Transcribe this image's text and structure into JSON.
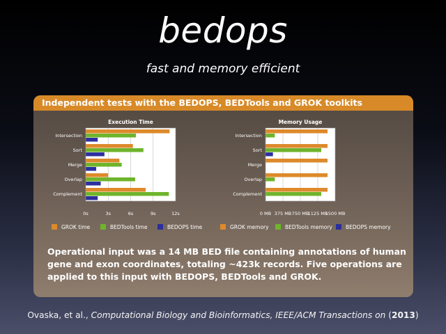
{
  "title": "bedops",
  "subtitle": "fast and memory efficient",
  "panel": {
    "header": "Independent tests with the BEDOPS, BEDTools and GROK toolkits",
    "description": "Operational input was a 14 MB BED file containing annotations of human gene and exon coordinates, totaling ~423k records. Five operations are applied to this input with BEDOPS, BEDTools and GROK."
  },
  "citation": {
    "authors": "Ovaska,  et al.,",
    "journal": "Computational Biology and Bioinformatics, IEEE/ACM Transactions on",
    "year_open": "(",
    "year": "2013",
    "year_close": ")"
  },
  "colors": {
    "grok": "#dd8a2b",
    "bedtools": "#6fb42c",
    "bedops": "#2c2f9e"
  },
  "chart_data": [
    {
      "type": "bar",
      "orientation": "horizontal",
      "title": "Execution Time",
      "categories": [
        "Intersection",
        "Sort",
        "Merge",
        "Overlap",
        "Complement"
      ],
      "xlim": [
        0,
        12
      ],
      "xticks": [
        "0s",
        "3s",
        "6s",
        "9s",
        "12s"
      ],
      "grid": true,
      "series": [
        {
          "name": "GROK time",
          "color": "#dd8a2b",
          "values": [
            11.2,
            6.3,
            4.5,
            3.0,
            8.0
          ]
        },
        {
          "name": "BEDTools time",
          "color": "#6fb42c",
          "values": [
            6.7,
            7.7,
            4.8,
            6.6,
            11.1
          ]
        },
        {
          "name": "BEDOPS time",
          "color": "#2c2f9e",
          "values": [
            1.6,
            2.5,
            1.4,
            2.0,
            1.6
          ]
        }
      ]
    },
    {
      "type": "bar",
      "orientation": "horizontal",
      "title": "Memory Usage",
      "categories": [
        "Intersection",
        "Sort",
        "Merge",
        "Overlap",
        "Complement"
      ],
      "xlim": [
        0,
        1500
      ],
      "xticks": [
        "0 MB",
        "375 MB",
        "750 MB",
        "1125 MB",
        "1500 MB"
      ],
      "grid": true,
      "series": [
        {
          "name": "GROK memory",
          "color": "#dd8a2b",
          "values": [
            1335,
            1335,
            1335,
            1335,
            1335
          ]
        },
        {
          "name": "BEDTools memory",
          "color": "#6fb42c",
          "values": [
            200,
            1200,
            2,
            200,
            1200
          ]
        },
        {
          "name": "BEDOPS memory",
          "color": "#2c2f9e",
          "values": [
            3,
            160,
            2,
            2,
            3
          ]
        }
      ]
    }
  ]
}
